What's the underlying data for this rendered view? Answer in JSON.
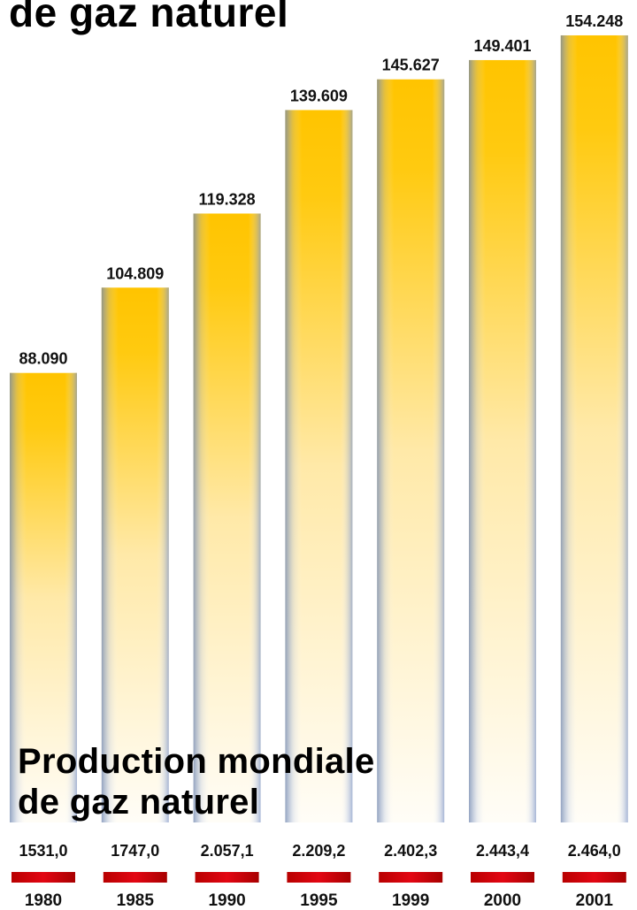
{
  "page": {
    "top_title": "de gaz naturel",
    "title_line1": "Production mondiale",
    "title_line2": "de gaz naturel"
  },
  "chart_data": {
    "type": "bar",
    "title": "Production mondiale de gaz naturel",
    "categories": [
      "1980",
      "1985",
      "1990",
      "1995",
      "1999",
      "2000",
      "2001"
    ],
    "values": [
      88.09,
      104.809,
      119.328,
      139.609,
      145.627,
      149.401,
      154.248
    ],
    "value_labels": [
      "88.090",
      "104.809",
      "119.328",
      "139.609",
      "145.627",
      "149.401",
      "154.248"
    ],
    "secondary_labels": [
      "1531,0",
      "1747,0",
      "2.057,1",
      "2.209,2",
      "2.402,3",
      "2.443,4",
      "2.464,0"
    ],
    "xlabel": "",
    "ylabel": "",
    "grid": false,
    "legend": false,
    "colors": {
      "bar_top": "#ffc800",
      "bar_bottom": "#fffaf0",
      "bar_edge": "#7f94c8",
      "marker": "#d60000"
    }
  }
}
